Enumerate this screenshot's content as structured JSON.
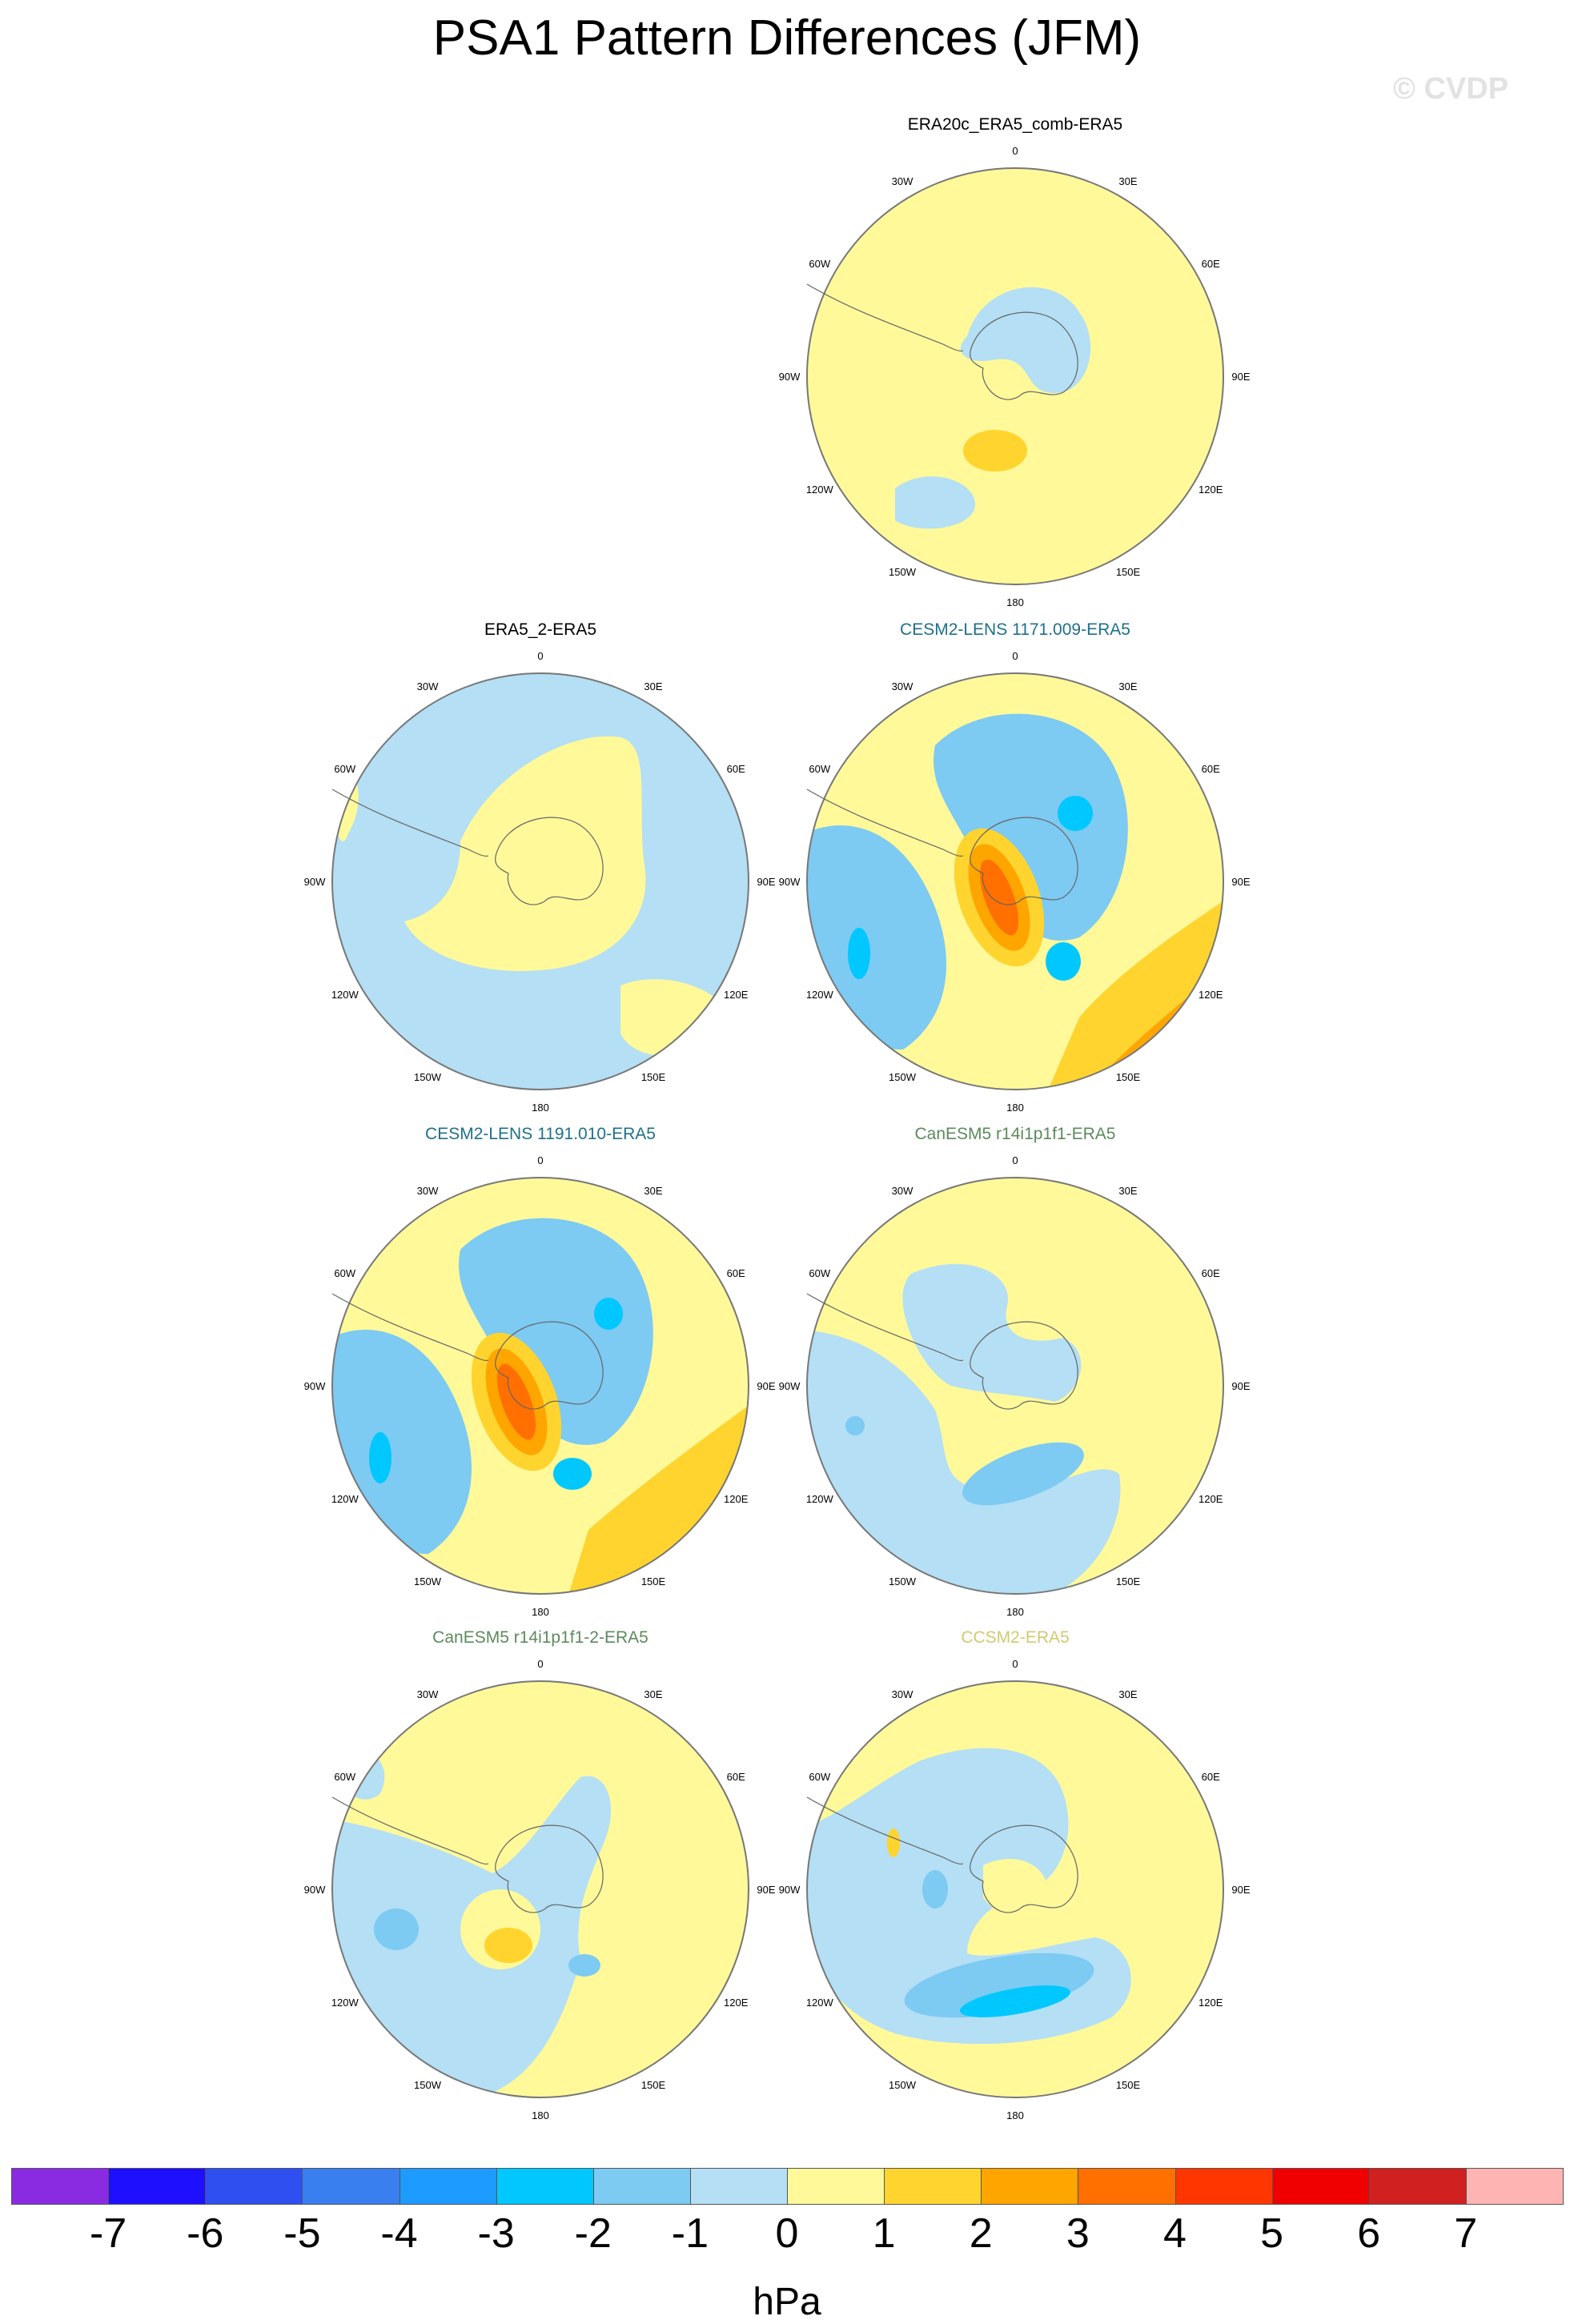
{
  "title": "PSA1 Pattern Differences (JFM)",
  "watermark": "© CVDP",
  "map_labels": {
    "lon_0": "0",
    "lon_30e": "30E",
    "lon_60e": "60E",
    "lon_90e": "90E",
    "lon_120e": "120E",
    "lon_150e": "150E",
    "lon_180": "180",
    "lon_150w": "150W",
    "lon_120w": "120W",
    "lon_90w": "90W",
    "lon_60w": "60W",
    "lon_30w": "30W"
  },
  "panels": [
    {
      "title": "ERA20c_ERA5_comb-ERA5",
      "title_color": "#000000"
    },
    {
      "title": "ERA5_2-ERA5",
      "title_color": "#000000"
    },
    {
      "title": "CESM2-LENS 1171.009-ERA5",
      "title_color": "#1f6f8b"
    },
    {
      "title": "CESM2-LENS 1191.010-ERA5",
      "title_color": "#1f6f8b"
    },
    {
      "title": "CanESM5 r14i1p1f1-ERA5",
      "title_color": "#5c8a5c"
    },
    {
      "title": "CanESM5 r14i1p1f1-2-ERA5",
      "title_color": "#5c8a5c"
    },
    {
      "title": "CCSM2-ERA5",
      "title_color": "#d4c870"
    }
  ],
  "colorbar": {
    "unit": "hPa",
    "labels": [
      "-7",
      "-6",
      "-5",
      "-4",
      "-3",
      "-2",
      "-1",
      "0",
      "1",
      "2",
      "3",
      "4",
      "5",
      "6",
      "7"
    ],
    "colors": [
      "#8a2be2",
      "#1e10ff",
      "#2f4ff0",
      "#3a7ff0",
      "#1e9bff",
      "#00c8ff",
      "#7dcaf3",
      "#b4dff4",
      "#fff99a",
      "#ffd42e",
      "#ffa500",
      "#ff7000",
      "#ff3600",
      "#f00000",
      "#d02020",
      "#ffb4b4"
    ]
  }
}
